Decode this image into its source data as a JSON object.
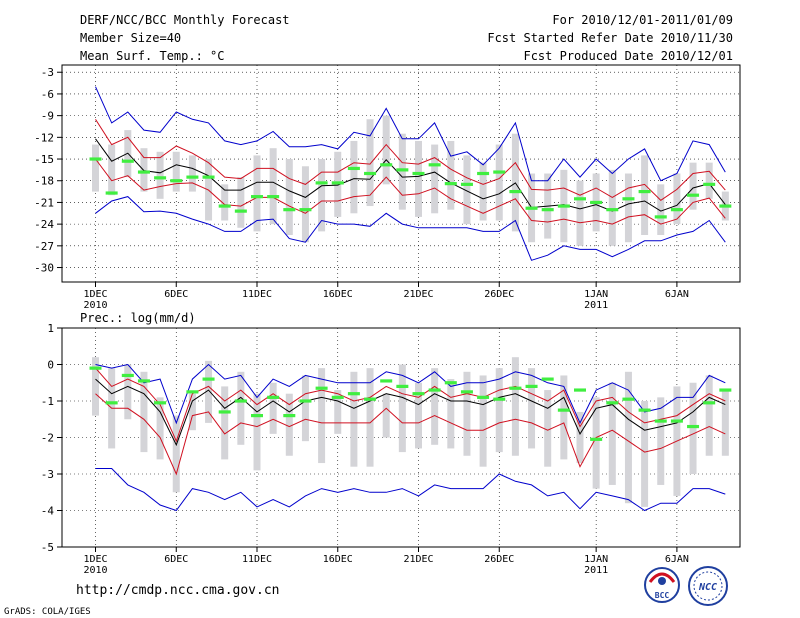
{
  "header": {
    "left": [
      "DERF/NCC/BCC Monthly Forecast",
      "Member Size=40",
      "Mean Surf. Temp.: °C"
    ],
    "right": [
      "For 2010/12/01-2011/01/09",
      "Fcst Started Refer Date 2010/11/30",
      "Fcst Produced Date 2010/12/01"
    ]
  },
  "panel2_label": "Prec.: log(mm/d)",
  "footer": {
    "url": "http://cmdp.ncc.cma.gov.cn",
    "grads": "GrADS: COLA/IGES"
  },
  "logos": [
    {
      "name": "bcc-logo",
      "text": "BCC"
    },
    {
      "name": "ncc-logo",
      "text": "NCC"
    }
  ],
  "x_ticks": [
    {
      "day": 1,
      "label": "1DEC",
      "sub": "2010"
    },
    {
      "day": 6,
      "label": "6DEC",
      "sub": ""
    },
    {
      "day": 11,
      "label": "11DEC",
      "sub": ""
    },
    {
      "day": 16,
      "label": "16DEC",
      "sub": ""
    },
    {
      "day": 21,
      "label": "21DEC",
      "sub": ""
    },
    {
      "day": 26,
      "label": "26DEC",
      "sub": ""
    },
    {
      "day": 32,
      "label": "1JAN",
      "sub": "2011"
    },
    {
      "day": 37,
      "label": "6JAN",
      "sub": ""
    }
  ],
  "colors": {
    "mean": "#000000",
    "sd": "#d01020",
    "extreme": "#0000cc",
    "box": "#d4d4d8",
    "obs": "#40ee40",
    "grid": "#000000"
  },
  "chart_data": [
    {
      "type": "line",
      "name": "temperature-panel",
      "title": "Mean Surf. Temp.: °C",
      "x": [
        1,
        2,
        3,
        4,
        5,
        6,
        7,
        8,
        9,
        10,
        11,
        12,
        13,
        14,
        15,
        16,
        17,
        18,
        19,
        20,
        21,
        22,
        23,
        24,
        25,
        26,
        27,
        28,
        29,
        30,
        31,
        32,
        33,
        34,
        35,
        36,
        37,
        38,
        39,
        40
      ],
      "ylim": [
        -32,
        -2
      ],
      "yticks": [
        -30,
        -27,
        -24,
        -21,
        -18,
        -15,
        -12,
        -9,
        -6,
        -3
      ],
      "ytick_labels": [
        "-30",
        "-27",
        "-24",
        "-21",
        "-18",
        "-15",
        "-12",
        "-9",
        "-6",
        "-3"
      ],
      "series": [
        {
          "name": "ensemble-mean",
          "color": "#000000",
          "values": [
            -12.2,
            -15.3,
            -14.2,
            -16.6,
            -16.9,
            -15.8,
            -16.3,
            -17.3,
            -19.3,
            -19.3,
            -18.2,
            -18.2,
            -19.4,
            -20.3,
            -18.7,
            -18.6,
            -17.7,
            -17.8,
            -15.1,
            -17.5,
            -17.4,
            -16.8,
            -18.3,
            -19.4,
            -20.5,
            -19.8,
            -18.3,
            -21.7,
            -21.5,
            -21.3,
            -21.9,
            -21.3,
            -22.2,
            -21.2,
            -20.8,
            -22.2,
            -21.4,
            -19.0,
            -18.4,
            -21.3
          ]
        },
        {
          "name": "plus-one-sd",
          "color": "#d01020",
          "values": [
            -9.5,
            -13.0,
            -12.0,
            -14.8,
            -14.8,
            -13.2,
            -14.2,
            -15.5,
            -17.5,
            -17.7,
            -16.3,
            -16.3,
            -17.7,
            -18.5,
            -16.8,
            -16.8,
            -15.5,
            -15.7,
            -13.0,
            -15.5,
            -15.7,
            -14.8,
            -16.4,
            -17.6,
            -18.5,
            -17.7,
            -15.5,
            -19.2,
            -19.3,
            -19.0,
            -20.0,
            -19.0,
            -20.3,
            -19.0,
            -18.5,
            -20.7,
            -19.2,
            -17.0,
            -16.7,
            -19.3
          ]
        },
        {
          "name": "minus-one-sd",
          "color": "#d01020",
          "values": [
            -15.0,
            -18.0,
            -17.3,
            -19.3,
            -18.8,
            -18.4,
            -18.3,
            -19.3,
            -21.3,
            -21.5,
            -20.3,
            -20.3,
            -21.5,
            -22.5,
            -20.8,
            -20.8,
            -20.2,
            -20.0,
            -17.5,
            -20.0,
            -19.8,
            -19.0,
            -20.5,
            -21.5,
            -22.5,
            -21.5,
            -20.5,
            -23.5,
            -23.7,
            -23.3,
            -23.8,
            -23.5,
            -24.0,
            -23.0,
            -22.7,
            -24.0,
            -23.3,
            -21.0,
            -20.4,
            -23.2
          ]
        },
        {
          "name": "ensemble-max",
          "color": "#0000cc",
          "values": [
            -5.0,
            -10.0,
            -8.5,
            -11.0,
            -11.3,
            -8.5,
            -9.5,
            -10.0,
            -12.5,
            -13.0,
            -12.5,
            -11.2,
            -13.3,
            -13.3,
            -13.0,
            -13.6,
            -11.3,
            -11.8,
            -8.0,
            -12.2,
            -12.2,
            -10.0,
            -14.6,
            -14.0,
            -15.8,
            -13.5,
            -10.0,
            -18.0,
            -18.0,
            -15.0,
            -17.5,
            -15.0,
            -17.0,
            -15.0,
            -13.6,
            -18.0,
            -17.0,
            -12.5,
            -13.0,
            -16.8
          ]
        },
        {
          "name": "ensemble-min",
          "color": "#0000cc",
          "values": [
            -22.5,
            -20.8,
            -20.2,
            -22.3,
            -22.2,
            -22.5,
            -23.3,
            -24.0,
            -25.0,
            -25.0,
            -23.5,
            -23.3,
            -26.0,
            -26.5,
            -23.5,
            -24.0,
            -24.0,
            -24.3,
            -22.5,
            -24.0,
            -24.5,
            -24.5,
            -24.5,
            -24.5,
            -25.0,
            -25.0,
            -23.5,
            -29.0,
            -28.3,
            -27.0,
            -27.5,
            -27.5,
            -28.5,
            -27.5,
            -26.3,
            -26.3,
            -25.5,
            -25.0,
            -23.5,
            -26.5
          ]
        },
        {
          "name": "box-upper",
          "color": "#d4d4d8",
          "values": [
            -13.0,
            -13.0,
            -11.0,
            -13.5,
            -14.0,
            -14.0,
            -14.5,
            -15.0,
            -18.5,
            -17.5,
            -14.5,
            -13.5,
            -15.0,
            -16.0,
            -15.0,
            -14.0,
            -12.5,
            -9.5,
            -9.0,
            -11.5,
            -12.5,
            -13.0,
            -12.5,
            -14.5,
            -15.5,
            -13.0,
            -11.5,
            -17.0,
            -17.0,
            -16.5,
            -18.0,
            -17.0,
            -16.5,
            -17.0,
            -14.5,
            -18.5,
            -17.0,
            -15.5,
            -15.5,
            -19.5
          ]
        },
        {
          "name": "box-lower",
          "color": "#d4d4d8",
          "values": [
            -19.5,
            -20.0,
            -17.5,
            -19.5,
            -20.5,
            -19.5,
            -19.5,
            -23.5,
            -23.5,
            -24.5,
            -25.0,
            -24.0,
            -25.5,
            -26.5,
            -25.0,
            -23.0,
            -22.5,
            -21.5,
            -18.5,
            -22.0,
            -23.0,
            -22.5,
            -22.0,
            -24.0,
            -23.5,
            -23.5,
            -25.0,
            -26.5,
            -26.0,
            -26.5,
            -27.0,
            -25.0,
            -27.0,
            -26.5,
            -25.5,
            -25.5,
            -24.0,
            -22.0,
            -20.5,
            -23.5
          ]
        },
        {
          "name": "observed",
          "color": "#40ee40",
          "values": [
            -15.0,
            -19.7,
            -15.3,
            -16.8,
            -17.6,
            -18.0,
            -17.5,
            -17.5,
            -21.5,
            -22.2,
            -20.2,
            -20.2,
            -22.0,
            -22.0,
            -18.3,
            -18.3,
            -16.3,
            -17.0,
            -15.8,
            -16.5,
            -17.0,
            -15.8,
            -18.4,
            -18.5,
            -17.0,
            -16.8,
            -19.5,
            -21.8,
            -22.0,
            -21.5,
            -20.5,
            -21.0,
            -22.0,
            -20.5,
            -19.5,
            -23.0,
            -22.0,
            -20.0,
            -18.5,
            -21.5
          ]
        }
      ]
    },
    {
      "type": "line",
      "name": "precipitation-panel",
      "title": "Prec.: log(mm/d)",
      "x": [
        1,
        2,
        3,
        4,
        5,
        6,
        7,
        8,
        9,
        10,
        11,
        12,
        13,
        14,
        15,
        16,
        17,
        18,
        19,
        20,
        21,
        22,
        23,
        24,
        25,
        26,
        27,
        28,
        29,
        30,
        31,
        32,
        33,
        34,
        35,
        36,
        37,
        38,
        39,
        40
      ],
      "ylim": [
        -5,
        1
      ],
      "yticks": [
        -5,
        -4,
        -3,
        -2,
        -1,
        0,
        1
      ],
      "ytick_labels": [
        "-5",
        "-4",
        "-3",
        "-2",
        "-1",
        "0",
        "1"
      ],
      "series": [
        {
          "name": "ensemble-mean",
          "color": "#000000",
          "values": [
            -0.4,
            -0.8,
            -0.6,
            -0.8,
            -1.3,
            -2.2,
            -1.0,
            -0.7,
            -1.2,
            -0.9,
            -1.3,
            -1.0,
            -1.3,
            -1.0,
            -0.9,
            -1.0,
            -1.2,
            -1.0,
            -0.8,
            -0.9,
            -1.1,
            -0.8,
            -1.0,
            -1.0,
            -1.1,
            -0.9,
            -0.8,
            -1.0,
            -1.2,
            -0.9,
            -1.9,
            -1.2,
            -1.1,
            -1.5,
            -1.8,
            -1.7,
            -1.6,
            -1.3,
            -0.9,
            -1.1
          ]
        },
        {
          "name": "plus-one-sd",
          "color": "#d01020",
          "values": [
            -0.1,
            -0.6,
            -0.4,
            -0.6,
            -1.1,
            -2.1,
            -0.8,
            -0.6,
            -1.0,
            -0.7,
            -1.1,
            -0.8,
            -1.1,
            -0.8,
            -0.7,
            -0.8,
            -1.0,
            -0.9,
            -0.6,
            -0.8,
            -0.9,
            -0.6,
            -0.9,
            -0.8,
            -0.9,
            -0.7,
            -0.6,
            -0.8,
            -1.0,
            -0.7,
            -1.7,
            -1.0,
            -0.9,
            -1.3,
            -1.6,
            -1.5,
            -1.4,
            -1.1,
            -0.8,
            -1.0
          ]
        },
        {
          "name": "minus-one-sd",
          "color": "#d01020",
          "values": [
            -0.8,
            -1.2,
            -1.2,
            -1.5,
            -2.0,
            -3.0,
            -1.4,
            -1.3,
            -1.9,
            -1.6,
            -1.7,
            -1.5,
            -1.7,
            -1.5,
            -1.6,
            -1.6,
            -1.6,
            -1.6,
            -1.2,
            -1.6,
            -1.6,
            -1.4,
            -1.6,
            -1.8,
            -1.8,
            -1.6,
            -1.5,
            -1.6,
            -1.8,
            -1.6,
            -2.8,
            -2.0,
            -1.8,
            -2.1,
            -2.4,
            -2.3,
            -2.1,
            -1.9,
            -1.7,
            -1.9
          ]
        },
        {
          "name": "ensemble-max",
          "color": "#0000cc",
          "values": [
            0.0,
            -0.1,
            0.0,
            -0.5,
            -0.4,
            -1.6,
            -0.4,
            0.0,
            -0.4,
            -0.3,
            -0.9,
            -0.4,
            -0.6,
            -0.3,
            -0.4,
            -0.5,
            -0.5,
            -0.5,
            -0.2,
            -0.3,
            -0.5,
            -0.2,
            -0.6,
            -0.5,
            -0.5,
            -0.4,
            -0.2,
            -0.3,
            -0.5,
            -0.6,
            -1.6,
            -0.7,
            -0.5,
            -0.7,
            -1.3,
            -1.2,
            -0.9,
            -0.9,
            -0.3,
            -0.5
          ]
        },
        {
          "name": "ensemble-min",
          "color": "#0000cc",
          "values": [
            -2.85,
            -2.85,
            -3.3,
            -3.5,
            -3.85,
            -4.0,
            -3.4,
            -3.5,
            -3.7,
            -3.5,
            -3.9,
            -3.7,
            -3.9,
            -3.6,
            -3.4,
            -3.5,
            -3.4,
            -3.5,
            -3.5,
            -3.4,
            -3.6,
            -3.3,
            -3.4,
            -3.4,
            -3.4,
            -3.0,
            -3.2,
            -3.3,
            -3.6,
            -3.5,
            -3.95,
            -3.5,
            -3.6,
            -3.7,
            -4.0,
            -3.8,
            -3.8,
            -3.4,
            -3.4,
            -3.55
          ]
        },
        {
          "name": "box-upper",
          "color": "#d4d4d8",
          "values": [
            0.2,
            -0.1,
            0.0,
            -0.2,
            -0.9,
            -1.4,
            -0.8,
            0.1,
            -0.6,
            -0.2,
            -0.8,
            -0.5,
            -0.8,
            -0.3,
            -0.1,
            -0.7,
            -0.2,
            -0.1,
            -0.8,
            0.0,
            -0.5,
            -0.1,
            -0.4,
            -0.2,
            -0.3,
            -0.1,
            0.2,
            -0.1,
            -0.7,
            -0.3,
            -1.3,
            -0.9,
            -0.5,
            -0.2,
            -1.0,
            -0.9,
            -0.6,
            -0.5,
            -0.3,
            -0.7
          ]
        },
        {
          "name": "box-lower",
          "color": "#d4d4d8",
          "values": [
            -1.4,
            -2.3,
            -1.5,
            -2.4,
            -2.6,
            -3.5,
            -1.8,
            -1.6,
            -2.6,
            -2.2,
            -2.9,
            -1.9,
            -2.5,
            -2.1,
            -2.7,
            -1.9,
            -2.8,
            -2.8,
            -2.0,
            -2.4,
            -2.3,
            -2.2,
            -2.3,
            -2.5,
            -2.8,
            -2.4,
            -2.5,
            -2.3,
            -2.8,
            -2.6,
            -2.7,
            -3.4,
            -3.3,
            -3.8,
            -3.9,
            -3.3,
            -3.6,
            -3.0,
            -2.5,
            -2.5
          ]
        },
        {
          "name": "observed",
          "color": "#40ee40",
          "values": [
            -0.1,
            -1.05,
            -0.3,
            -0.45,
            -1.05,
            null,
            -0.75,
            -0.4,
            -1.3,
            -1.0,
            -1.4,
            -0.9,
            -1.4,
            -1.0,
            -0.65,
            -0.9,
            -0.8,
            -0.95,
            -0.45,
            -0.6,
            -0.8,
            -0.7,
            -0.5,
            -0.75,
            -0.9,
            -0.95,
            -0.65,
            -0.6,
            -0.4,
            -1.25,
            -0.7,
            -2.05,
            -1.05,
            -0.95,
            -1.25,
            -1.55,
            -1.55,
            -1.7,
            -1.05,
            -0.7
          ]
        }
      ]
    }
  ]
}
